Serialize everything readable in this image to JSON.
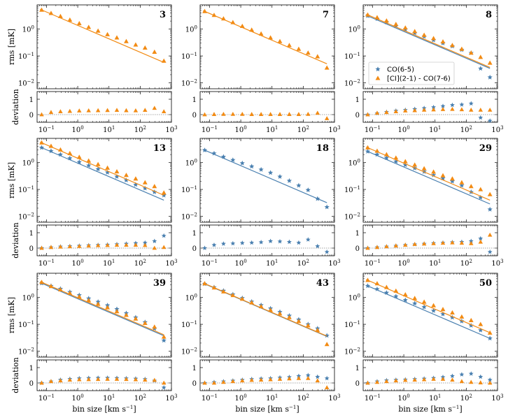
{
  "colors": {
    "co": "#4a80b0",
    "ci": "#f28b14",
    "zero": "#888888"
  },
  "chart_data": {
    "type": "scatter",
    "xlabel": "bin size [km s",
    "xlabel_sup": "−1",
    "xlabel_end": "]",
    "ylabel_top": "rms [mK]",
    "ylabel_bottom": "deviation",
    "xscale": "log",
    "yscale_top": "log",
    "xlim": [
      0.05,
      1000
    ],
    "ylim_top": [
      0.006,
      8
    ],
    "ylim_bottom": [
      -0.5,
      1.5
    ],
    "x_ticks": [
      {
        "v": 0.1,
        "b": "10",
        "e": "−1"
      },
      {
        "v": 1,
        "b": "10",
        "e": "0"
      },
      {
        "v": 10,
        "b": "10",
        "e": "1"
      },
      {
        "v": 100,
        "b": "10",
        "e": "2"
      },
      {
        "v": 1000,
        "b": "10",
        "e": "3"
      }
    ],
    "y_ticks_top": [
      {
        "v": 0.01,
        "b": "10",
        "e": "−2"
      },
      {
        "v": 0.1,
        "b": "10",
        "e": "−1"
      },
      {
        "v": 1,
        "b": "10",
        "e": "0"
      }
    ],
    "y_ticks_bottom": [
      {
        "v": 0,
        "t": "0"
      },
      {
        "v": 1,
        "t": "1"
      }
    ],
    "bins": [
      0.07,
      0.14,
      0.28,
      0.56,
      1.12,
      2.24,
      4.48,
      8.96,
      17.9,
      35.8,
      71.7,
      143,
      287,
      573
    ],
    "legend": {
      "panel": "8",
      "entries": [
        {
          "series": "co",
          "label": "CO(6-5)"
        },
        {
          "series": "ci",
          "label": "[CI](2-1) - CO(7-6)"
        }
      ]
    },
    "panels": [
      {
        "label": "3",
        "co": null,
        "ci": {
          "a": 5.2,
          "points": [
            5.2,
            3.9,
            3.0,
            2.2,
            1.62,
            1.18,
            0.86,
            0.63,
            0.48,
            0.35,
            0.26,
            0.2,
            0.14,
            0.065
          ],
          "dev": [
            0.0,
            0.15,
            0.2,
            0.22,
            0.25,
            0.26,
            0.27,
            0.28,
            0.29,
            0.27,
            0.26,
            0.29,
            0.42,
            0.2
          ]
        }
      },
      {
        "label": "7",
        "co": null,
        "ci": {
          "a": 4.6,
          "points": [
            4.6,
            3.3,
            2.45,
            1.78,
            1.29,
            0.93,
            0.67,
            0.48,
            0.35,
            0.25,
            0.18,
            0.13,
            0.095,
            0.036
          ],
          "dev": [
            0.0,
            0.02,
            0.03,
            0.03,
            0.03,
            0.02,
            0.02,
            0.02,
            0.02,
            0.02,
            0.02,
            0.03,
            0.1,
            -0.25
          ]
        }
      },
      {
        "label": "8",
        "co": {
          "a": 3.1,
          "points": [
            3.1,
            2.4,
            1.8,
            1.3,
            0.98,
            0.72,
            0.53,
            0.39,
            0.3,
            0.23,
            0.17,
            0.13,
            0.034,
            0.016
          ],
          "dev": [
            0.0,
            0.08,
            0.17,
            0.25,
            0.3,
            0.36,
            0.42,
            0.48,
            0.55,
            0.62,
            0.65,
            0.72,
            -0.2,
            -0.4
          ]
        },
        "ci": {
          "a": 3.4,
          "points": [
            3.4,
            2.7,
            2.05,
            1.52,
            1.12,
            0.82,
            0.6,
            0.45,
            0.34,
            0.25,
            0.18,
            0.13,
            0.09,
            0.055
          ],
          "dev": [
            0.0,
            0.1,
            0.15,
            0.2,
            0.25,
            0.27,
            0.3,
            0.32,
            0.34,
            0.35,
            0.33,
            0.3,
            0.3,
            0.3
          ]
        }
      },
      {
        "label": "13",
        "co": {
          "a": 3.6,
          "points": [
            3.6,
            2.7,
            2.0,
            1.45,
            1.05,
            0.78,
            0.57,
            0.43,
            0.3,
            0.22,
            0.15,
            0.11,
            0.08,
            0.06
          ],
          "dev": [
            0.0,
            0.05,
            0.1,
            0.12,
            0.15,
            0.18,
            0.2,
            0.22,
            0.25,
            0.28,
            0.32,
            0.35,
            0.45,
            0.8
          ]
        },
        "ci": {
          "a": 5.5,
          "points": [
            5.5,
            4.1,
            3.0,
            2.2,
            1.6,
            1.17,
            0.86,
            0.63,
            0.46,
            0.34,
            0.25,
            0.18,
            0.13,
            0.075
          ],
          "dev": [
            0.0,
            0.05,
            0.08,
            0.1,
            0.12,
            0.15,
            0.17,
            0.18,
            0.2,
            0.2,
            0.2,
            0.18,
            0.0,
            0.05
          ]
        }
      },
      {
        "label": "18",
        "co": {
          "a": 2.9,
          "points": [
            2.9,
            2.2,
            1.65,
            1.25,
            0.95,
            0.72,
            0.55,
            0.42,
            0.3,
            0.21,
            0.14,
            0.095,
            0.045,
            0.022
          ],
          "dev": [
            0.0,
            0.2,
            0.28,
            0.3,
            0.33,
            0.35,
            0.38,
            0.45,
            0.43,
            0.4,
            0.35,
            0.55,
            0.12,
            -0.25
          ]
        },
        "ci": null
      },
      {
        "label": "29",
        "co": {
          "a": 2.6,
          "points": [
            2.6,
            2.0,
            1.5,
            1.1,
            0.82,
            0.62,
            0.46,
            0.34,
            0.26,
            0.2,
            0.14,
            0.08,
            0.05,
            0.018
          ],
          "dev": [
            0.0,
            0.05,
            0.1,
            0.15,
            0.2,
            0.24,
            0.28,
            0.32,
            0.35,
            0.38,
            0.4,
            0.45,
            0.62,
            -0.25
          ]
        },
        "ci": {
          "a": 3.6,
          "points": [
            3.6,
            2.7,
            2.0,
            1.5,
            1.1,
            0.82,
            0.6,
            0.45,
            0.33,
            0.25,
            0.18,
            0.13,
            0.1,
            0.065
          ],
          "dev": [
            0.0,
            0.05,
            0.1,
            0.15,
            0.2,
            0.25,
            0.28,
            0.3,
            0.33,
            0.35,
            0.33,
            0.3,
            0.4,
            0.85
          ]
        }
      },
      {
        "label": "39",
        "co": {
          "a": 3.4,
          "points": [
            3.4,
            2.7,
            2.1,
            1.6,
            1.22,
            0.92,
            0.69,
            0.51,
            0.37,
            0.26,
            0.18,
            0.12,
            0.07,
            0.025
          ],
          "dev": [
            0.0,
            0.1,
            0.2,
            0.26,
            0.3,
            0.32,
            0.33,
            0.33,
            0.32,
            0.3,
            0.28,
            0.25,
            0.15,
            -0.3
          ]
        },
        "ci": {
          "a": 3.7,
          "points": [
            3.7,
            2.6,
            1.95,
            1.45,
            1.06,
            0.78,
            0.57,
            0.42,
            0.3,
            0.22,
            0.16,
            0.11,
            0.08,
            0.034
          ],
          "dev": [
            0.0,
            0.1,
            0.15,
            0.2,
            0.22,
            0.23,
            0.24,
            0.25,
            0.25,
            0.24,
            0.22,
            0.2,
            0.18,
            0.0
          ]
        }
      },
      {
        "label": "43",
        "co": {
          "a": 3.2,
          "points": [
            3.2,
            2.4,
            1.78,
            1.3,
            0.95,
            0.7,
            0.52,
            0.39,
            0.29,
            0.21,
            0.15,
            0.1,
            0.07,
            0.038
          ],
          "dev": [
            0.0,
            0.05,
            0.1,
            0.15,
            0.2,
            0.25,
            0.28,
            0.3,
            0.35,
            0.38,
            0.45,
            0.5,
            0.4,
            0.3
          ]
        },
        "ci": {
          "a": 3.3,
          "points": [
            3.3,
            2.3,
            1.65,
            1.2,
            0.88,
            0.64,
            0.46,
            0.34,
            0.25,
            0.18,
            0.13,
            0.09,
            0.06,
            0.018
          ],
          "dev": [
            0.0,
            0.0,
            0.05,
            0.1,
            0.15,
            0.18,
            0.2,
            0.22,
            0.25,
            0.28,
            0.3,
            0.3,
            0.15,
            -0.3
          ]
        }
      },
      {
        "label": "50",
        "co": {
          "a": 2.7,
          "points": [
            2.7,
            2.05,
            1.5,
            1.1,
            0.8,
            0.6,
            0.44,
            0.32,
            0.24,
            0.18,
            0.13,
            0.09,
            0.06,
            0.03
          ],
          "dev": [
            0.0,
            0.1,
            0.17,
            0.2,
            0.22,
            0.25,
            0.28,
            0.32,
            0.38,
            0.45,
            0.55,
            0.6,
            0.4,
            0.2
          ]
        },
        "ci": {
          "a": 4.4,
          "points": [
            4.4,
            3.3,
            2.4,
            1.75,
            1.28,
            0.93,
            0.68,
            0.5,
            0.36,
            0.27,
            0.19,
            0.14,
            0.1,
            0.048
          ],
          "dev": [
            0.0,
            0.05,
            0.1,
            0.15,
            0.18,
            0.2,
            0.22,
            0.25,
            0.25,
            0.2,
            0.1,
            0.05,
            0.02,
            0.0
          ]
        }
      }
    ]
  }
}
